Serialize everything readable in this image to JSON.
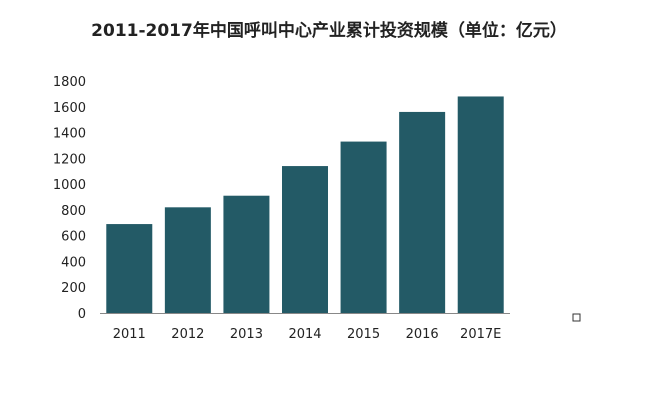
{
  "chart_data": {
    "type": "bar",
    "title": "2011-2017年中国呼叫中心产业累计投资规模（单位：亿元）",
    "categories": [
      "2011",
      "2012",
      "2013",
      "2014",
      "2015",
      "2016",
      "2017E"
    ],
    "values": [
      690,
      820,
      910,
      1140,
      1330,
      1560,
      1680
    ],
    "ylim": [
      0,
      1800
    ],
    "yticks": [
      0,
      200,
      400,
      600,
      800,
      1000,
      1200,
      1400,
      1600,
      1800
    ],
    "xlabel": "",
    "ylabel": "",
    "grid": false,
    "legend": "none",
    "bar_color": "#235a66",
    "axis_color": "#888888"
  }
}
